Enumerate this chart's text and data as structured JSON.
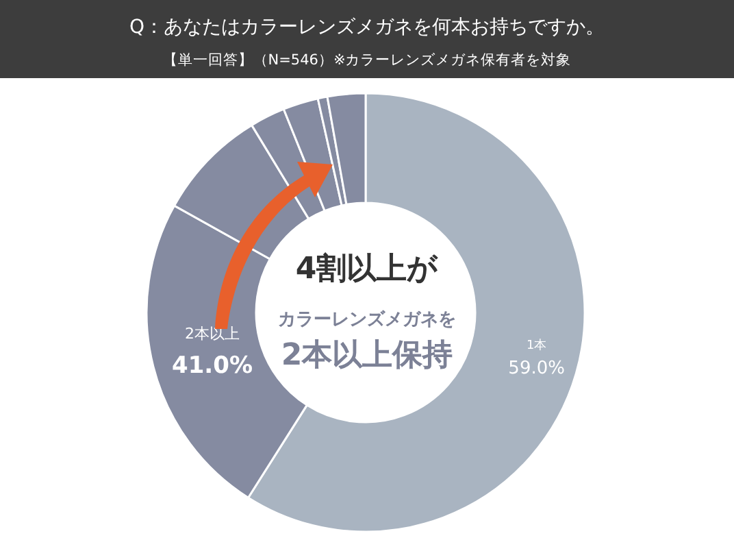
{
  "chart_data": {
    "type": "donut",
    "title": "Q：あなたはカラーレンズメガネを何本お持ちですか。",
    "subtitle": "【単一回答】（N=546）※カラーレンズメガネ保有者を対象",
    "categories": [
      "1本",
      null,
      null,
      null,
      null,
      null,
      null
    ],
    "values": [
      59.0,
      24.1,
      8.2,
      2.6,
      2.6,
      0.7,
      2.8
    ],
    "value_labels": [
      "59.0%",
      null,
      null,
      null,
      null,
      null,
      null
    ],
    "colors": [
      "#a9b4c1",
      "#858ba1",
      "#858ba1",
      "#858ba1",
      "#858ba1",
      "#858ba1",
      "#858ba1"
    ],
    "annotations": [
      "2本以上",
      "41.0%",
      "4割以上が",
      "カラーレンズメガネを",
      "2本以上保持"
    ]
  }
}
